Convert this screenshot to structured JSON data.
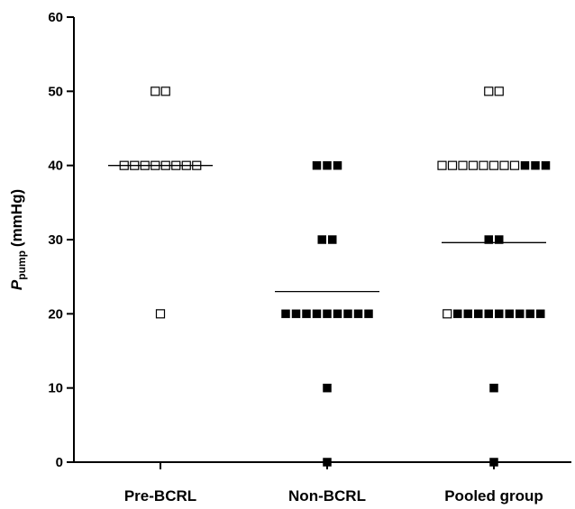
{
  "chart_data": {
    "type": "scatter",
    "title": "",
    "xlabel": "",
    "ylabel": {
      "main": "P",
      "subscript": "pump",
      "unit": "(mmHg)"
    },
    "ylim": [
      0,
      60
    ],
    "yticks": [
      "0",
      "10",
      "20",
      "30",
      "40",
      "50",
      "60"
    ],
    "grid": false,
    "categories": [
      "Pre-BCRL",
      "Non-BCRL",
      "Pooled group"
    ],
    "groups": [
      {
        "category": "Pre-BCRL",
        "median": 40,
        "points": [
          {
            "y": 50,
            "open": 2,
            "filled": 0
          },
          {
            "y": 40,
            "open": 8,
            "filled": 0
          },
          {
            "y": 20,
            "open": 1,
            "filled": 0
          }
        ]
      },
      {
        "category": "Non-BCRL",
        "median": 23,
        "points": [
          {
            "y": 40,
            "open": 0,
            "filled": 3
          },
          {
            "y": 30,
            "open": 0,
            "filled": 2
          },
          {
            "y": 20,
            "open": 0,
            "filled": 9
          },
          {
            "y": 10,
            "open": 0,
            "filled": 1
          },
          {
            "y": 0,
            "open": 0,
            "filled": 1
          }
        ]
      },
      {
        "category": "Pooled group",
        "median": 29.6,
        "points": [
          {
            "y": 50,
            "open": 2,
            "filled": 0
          },
          {
            "y": 40,
            "open": 8,
            "filled": 3
          },
          {
            "y": 30,
            "open": 0,
            "filled": 2
          },
          {
            "y": 20,
            "open": 1,
            "filled": 9
          },
          {
            "y": 10,
            "open": 0,
            "filled": 1
          },
          {
            "y": 0,
            "open": 0,
            "filled": 1
          }
        ]
      }
    ],
    "marker_color": "#000000"
  }
}
